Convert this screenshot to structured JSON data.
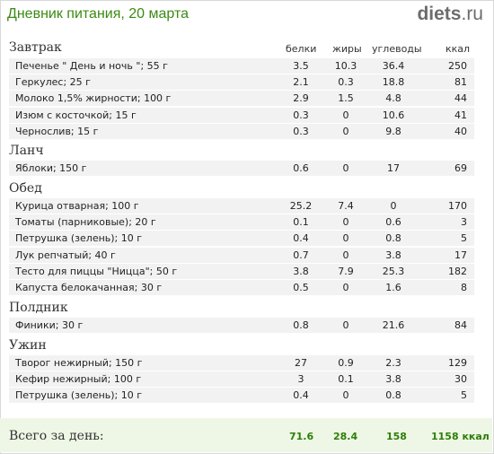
{
  "header": {
    "title": "Дневник питания, 20 марта",
    "logo_main": "diets",
    "logo_tld": ".ru"
  },
  "columns": {
    "protein": "белки",
    "fat": "жиры",
    "carbs": "углеводы",
    "kcal": "ккал"
  },
  "sections": [
    {
      "name": "Завтрак",
      "rows": [
        {
          "name": "Печенье \" День и ночь \"; 55 г",
          "p": "3.5",
          "f": "10.3",
          "c": "36.4",
          "k": "250"
        },
        {
          "name": "Геркулес; 25 г",
          "p": "2.1",
          "f": "0.3",
          "c": "18.8",
          "k": "81"
        },
        {
          "name": "Молоко 1,5% жирности; 100 г",
          "p": "2.9",
          "f": "1.5",
          "c": "4.8",
          "k": "44"
        },
        {
          "name": "Изюм с косточкой; 15 г",
          "p": "0.3",
          "f": "0",
          "c": "10.6",
          "k": "41"
        },
        {
          "name": "Чернослив; 15 г",
          "p": "0.3",
          "f": "0",
          "c": "9.8",
          "k": "40"
        }
      ]
    },
    {
      "name": "Ланч",
      "rows": [
        {
          "name": "Яблоки; 150 г",
          "p": "0.6",
          "f": "0",
          "c": "17",
          "k": "69"
        }
      ]
    },
    {
      "name": "Обед",
      "rows": [
        {
          "name": "Курица отварная; 100 г",
          "p": "25.2",
          "f": "7.4",
          "c": "0",
          "k": "170"
        },
        {
          "name": "Томаты (парниковые); 20 г",
          "p": "0.1",
          "f": "0",
          "c": "0.6",
          "k": "3"
        },
        {
          "name": "Петрушка (зелень); 10 г",
          "p": "0.4",
          "f": "0",
          "c": "0.8",
          "k": "5"
        },
        {
          "name": "Лук репчатый; 40 г",
          "p": "0.7",
          "f": "0",
          "c": "3.8",
          "k": "17"
        },
        {
          "name": "Тесто для пиццы \"Ницца\"; 50 г",
          "p": "3.8",
          "f": "7.9",
          "c": "25.3",
          "k": "182"
        },
        {
          "name": "Капуста белокачанная; 30 г",
          "p": "0.5",
          "f": "0",
          "c": "1.6",
          "k": "8"
        }
      ]
    },
    {
      "name": "Полдник",
      "rows": [
        {
          "name": "Финики; 30 г",
          "p": "0.8",
          "f": "0",
          "c": "21.6",
          "k": "84"
        }
      ]
    },
    {
      "name": "Ужин",
      "rows": [
        {
          "name": "Творог нежирный; 150 г",
          "p": "27",
          "f": "0.9",
          "c": "2.3",
          "k": "129"
        },
        {
          "name": "Кефир нежирный; 100 г",
          "p": "3",
          "f": "0.1",
          "c": "3.8",
          "k": "30"
        },
        {
          "name": "Петрушка (зелень); 10 г",
          "p": "0.4",
          "f": "0",
          "c": "0.8",
          "k": "5"
        }
      ]
    }
  ],
  "totals": {
    "label": "Всего за день:",
    "p": "71.6",
    "f": "28.4",
    "c": "158",
    "k": "1158 ккал"
  }
}
